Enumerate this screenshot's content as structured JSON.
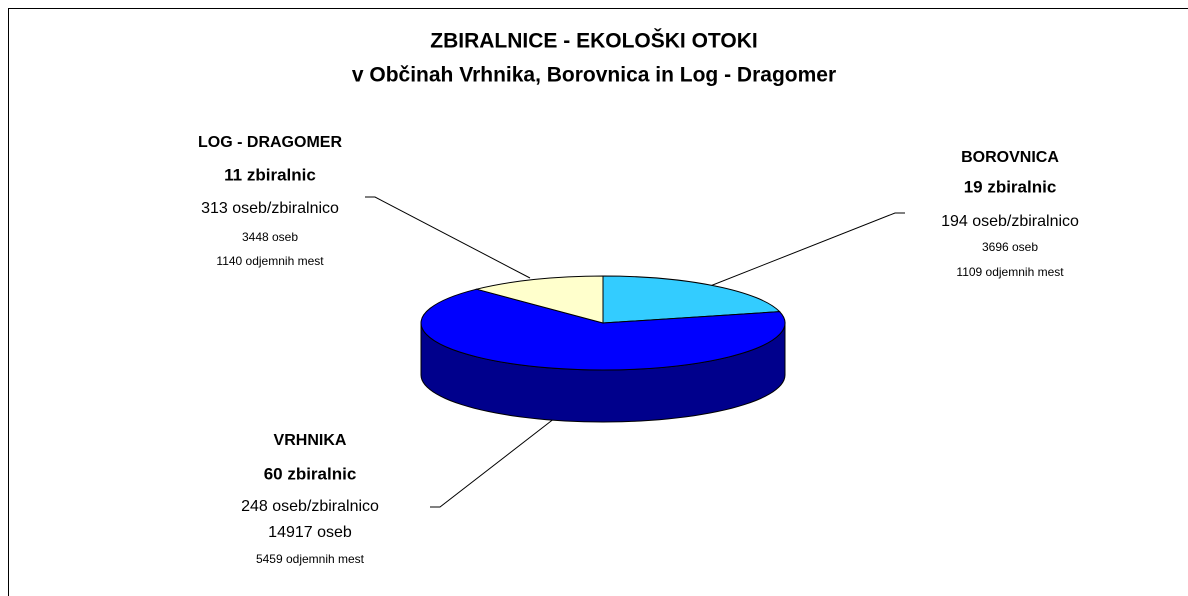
{
  "chart_data": {
    "type": "pie",
    "title": [
      "ZBIRALNICE - EKOLOŠKI OTOKI",
      "v Občinah Vrhnika, Borovnica in Log - Dragomer"
    ],
    "categories": [
      "BOROVNICA",
      "VRHNIKA",
      "LOG - DRAGOMER"
    ],
    "values": [
      19,
      60,
      11
    ],
    "value_labels": [
      "19 zbiralnic",
      "60 zbiralnic",
      "11 zbiralnic"
    ],
    "details": [
      [
        "194 oseb/zbiralnico",
        "3696 oseb",
        "1109 odjemnih mest"
      ],
      [
        "248 oseb/zbiralnico",
        "14917 oseb",
        "5459 odjemnih mest"
      ],
      [
        "313 oseb/zbiralnico",
        "3448 oseb",
        "1140 odjemnih mest"
      ]
    ],
    "colors": [
      "#33ccff",
      "#0000ff",
      "#ffffcc"
    ]
  }
}
